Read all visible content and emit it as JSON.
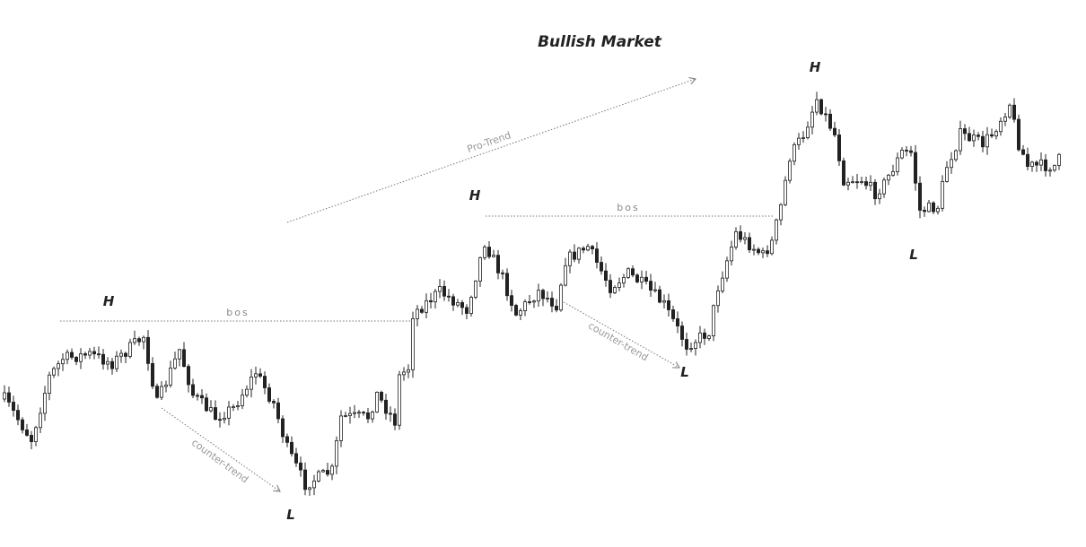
{
  "title": "Bullish Market",
  "labels": {
    "highs": [
      "H",
      "H",
      "H"
    ],
    "lows": [
      "L",
      "L",
      "L"
    ],
    "bos": [
      "bos",
      "bos"
    ],
    "counter_trend": [
      "counter-trend",
      "counter-trend"
    ],
    "pro_trend": "Pro-Trend"
  }
}
